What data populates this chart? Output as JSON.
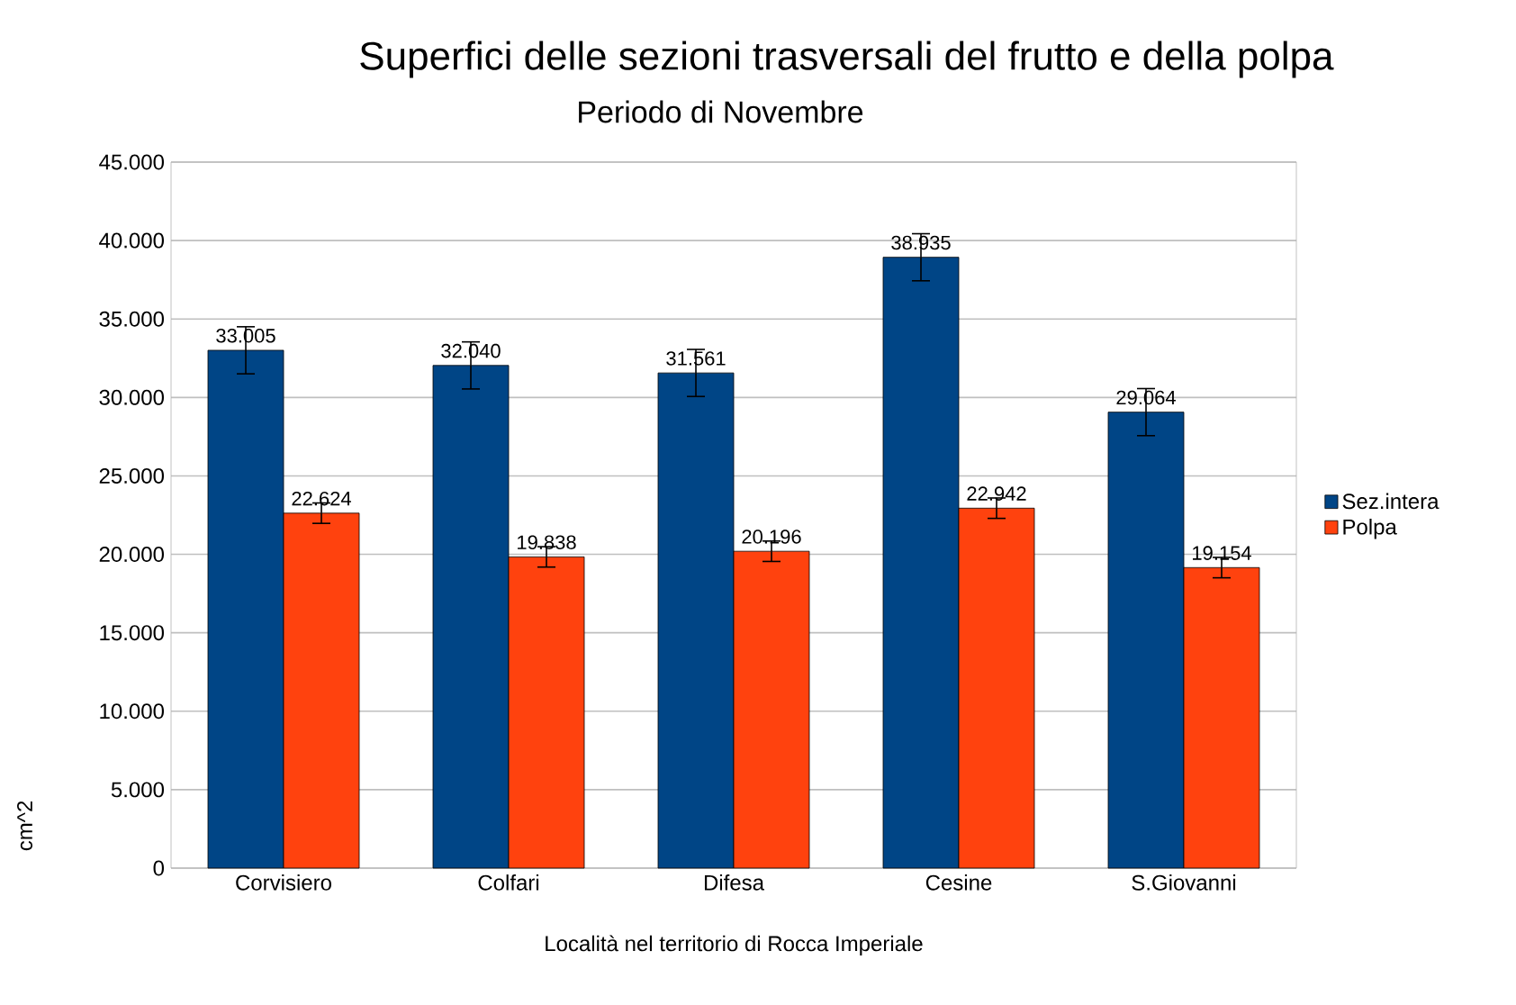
{
  "chart_data": {
    "type": "bar",
    "title": "Superfici delle sezioni trasversali del frutto e della polpa",
    "subtitle": "Periodo di Novembre",
    "xlabel": "Località nel territorio di Rocca Imperiale",
    "ylabel": "cm^2",
    "categories": [
      "Corvisiero",
      "Colfari",
      "Difesa",
      "Cesine",
      "S.Giovanni"
    ],
    "series": [
      {
        "name": "Sez.intera",
        "color": "#004586",
        "values": [
          33005,
          32040,
          31561,
          38935,
          29064
        ],
        "errors": [
          1500,
          1500,
          1500,
          1500,
          1500
        ],
        "value_labels": [
          "33.005",
          "32.040",
          "31.561",
          "38.935",
          "29.064"
        ]
      },
      {
        "name": "Polpa",
        "color": "#ff420e",
        "values": [
          22624,
          19838,
          20196,
          22942,
          19154
        ],
        "errors": [
          650,
          650,
          650,
          650,
          650
        ],
        "value_labels": [
          "22.624",
          "19.838",
          "20.196",
          "22.942",
          "19.154"
        ]
      }
    ],
    "ylim": [
      0,
      45000
    ],
    "yticks": [
      {
        "value": 0,
        "label": "0"
      },
      {
        "value": 5000,
        "label": "5.000"
      },
      {
        "value": 10000,
        "label": "10.000"
      },
      {
        "value": 15000,
        "label": "15.000"
      },
      {
        "value": 20000,
        "label": "20.000"
      },
      {
        "value": 25000,
        "label": "25.000"
      },
      {
        "value": 30000,
        "label": "30.000"
      },
      {
        "value": 35000,
        "label": "35.000"
      },
      {
        "value": 40000,
        "label": "40.000"
      },
      {
        "value": 45000,
        "label": "45.000"
      }
    ],
    "grid": "y",
    "legend": "right"
  }
}
